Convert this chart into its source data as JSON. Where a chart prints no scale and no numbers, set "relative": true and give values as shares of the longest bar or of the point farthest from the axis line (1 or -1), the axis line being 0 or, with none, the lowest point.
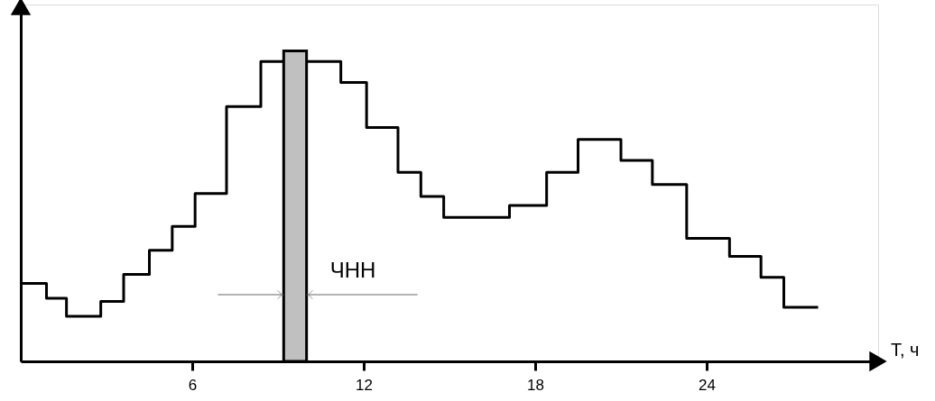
{
  "chart_data": {
    "type": "step",
    "relative": true,
    "xlabel": "T, ч",
    "x": [
      0,
      0.9,
      1.6,
      2.8,
      3.6,
      4.5,
      5.3,
      6.1,
      7.2,
      8.4,
      11.2,
      12.1,
      13.2,
      14.0,
      14.8,
      17.1,
      18.4,
      19.5,
      21.0,
      22.1,
      23.3,
      24.8,
      25.9,
      26.7,
      27.9
    ],
    "series": [
      {
        "color": "#000000",
        "values": [
          0.26,
          0.21,
          0.15,
          0.2,
          0.29,
          0.37,
          0.45,
          0.56,
          0.85,
          1.0,
          0.93,
          0.78,
          0.63,
          0.55,
          0.48,
          0.52,
          0.63,
          0.74,
          0.67,
          0.59,
          0.41,
          0.35,
          0.28,
          0.18,
          0.18
        ]
      }
    ],
    "xlim": [
      0,
      30
    ],
    "xticks": [
      6,
      12,
      18,
      24
    ],
    "bands": [
      {
        "axis": "x",
        "from": 9.2,
        "to": 10.0,
        "label": "ЧНН",
        "color": "#c0c0c0"
      }
    ],
    "grid": false,
    "tick_labels": "x",
    "marker": "none",
    "line_style": "solid"
  }
}
